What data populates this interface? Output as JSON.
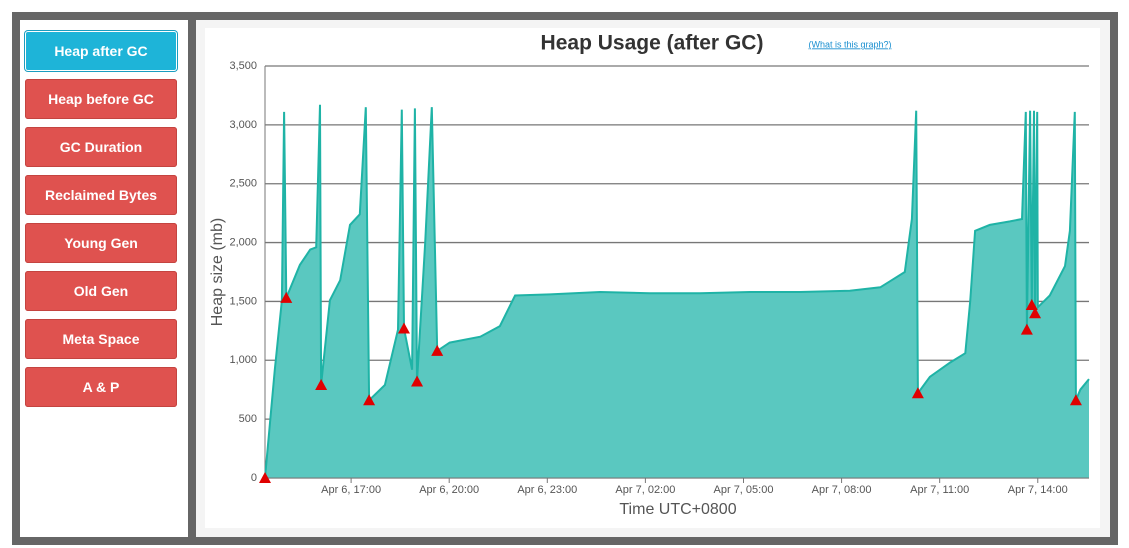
{
  "sidebar": {
    "buttons": [
      "Heap after GC",
      "Heap before GC",
      "GC Duration",
      "Reclaimed Bytes",
      "Young Gen",
      "Old Gen",
      "Meta Space",
      "A & P"
    ],
    "active": 0
  },
  "chart_data": {
    "type": "area",
    "title": "Heap Usage (after GC)",
    "help_link": "(What is this graph?)",
    "x_label": "Time UTC+0800",
    "y_label": "Heap size (mb)",
    "color": "#1fb3a6",
    "fill": "#5ac8c0",
    "grid": true,
    "x": [
      "Apr 6, 14:22",
      "Apr 6, 14:40",
      "Apr 6, 14:53",
      "Apr 6, 14:57",
      "Apr 6, 15:01",
      "Apr 6, 15:26",
      "Apr 6, 15:45",
      "Apr 6, 15:56",
      "Apr 6, 16:03",
      "Apr 6, 16:05",
      "Apr 6, 16:21",
      "Apr 6, 16:40",
      "Apr 6, 16:58",
      "Apr 6, 17:16",
      "Apr 6, 17:27",
      "Apr 6, 17:33",
      "Apr 6, 18:02",
      "Apr 6, 18:26",
      "Apr 6, 18:33",
      "Apr 6, 18:37",
      "Apr 6, 18:52",
      "Apr 6, 18:57",
      "Apr 6, 19:01",
      "Apr 6, 19:16",
      "Apr 6, 19:28",
      "Apr 6, 19:38",
      "Apr 6, 20:01",
      "Apr 6, 20:57",
      "Apr 6, 21:33",
      "Apr 6, 22:01",
      "Apr 6, 23:05",
      "Apr 7, 00:37",
      "Apr 7, 02:08",
      "Apr 7, 03:40",
      "Apr 7, 05:12",
      "Apr 7, 06:44",
      "Apr 7, 08:15",
      "Apr 7, 09:11",
      "Apr 7, 09:56",
      "Apr 7, 10:09",
      "Apr 7, 10:17",
      "Apr 7, 10:20",
      "Apr 7, 10:42",
      "Apr 7, 11:19",
      "Apr 7, 11:47",
      "Apr 7, 11:56",
      "Apr 7, 12:05",
      "Apr 7, 12:32",
      "Apr 7, 13:09",
      "Apr 7, 13:31",
      "Apr 7, 13:38",
      "Apr 7, 13:40",
      "Apr 7, 13:46",
      "Apr 7, 13:49",
      "Apr 7, 13:53",
      "Apr 7, 13:55",
      "Apr 7, 13:59",
      "Apr 7, 14:00",
      "Apr 7, 14:22",
      "Apr 7, 14:50",
      "Apr 7, 14:59",
      "Apr 7, 15:08",
      "Apr 7, 15:10",
      "Apr 7, 15:18",
      "Apr 7, 15:34"
    ],
    "values": [
      0,
      920,
      1510,
      3110,
      1530,
      1810,
      1940,
      1960,
      3170,
      790,
      1510,
      1680,
      2150,
      2240,
      3150,
      660,
      790,
      1260,
      3130,
      1270,
      920,
      3140,
      820,
      2000,
      3150,
      1080,
      1150,
      1200,
      1290,
      1550,
      1560,
      1580,
      1570,
      1570,
      1580,
      1580,
      1590,
      1620,
      1750,
      2200,
      3120,
      720,
      860,
      980,
      1060,
      1500,
      2100,
      2150,
      2180,
      2200,
      3110,
      1260,
      3120,
      1470,
      3120,
      1400,
      3110,
      1450,
      1550,
      1800,
      2100,
      3110,
      660,
      750,
      840
    ],
    "gc_events": {
      "color": "#e00000",
      "x": [
        "Apr 6, 14:22",
        "Apr 6, 15:01",
        "Apr 6, 16:05",
        "Apr 6, 17:33",
        "Apr 6, 18:37",
        "Apr 6, 19:01",
        "Apr 6, 19:38",
        "Apr 7, 10:20",
        "Apr 7, 13:40",
        "Apr 7, 13:49",
        "Apr 7, 13:55",
        "Apr 7, 15:10"
      ],
      "values": [
        0,
        1530,
        790,
        660,
        1270,
        820,
        1080,
        720,
        1260,
        1470,
        1400,
        660
      ]
    },
    "xlim": [
      "Apr 6, 14:22",
      "Apr 7, 15:34"
    ],
    "xticks": [
      "Apr 6, 17:00",
      "Apr 6, 20:00",
      "Apr 6, 23:00",
      "Apr 7, 02:00",
      "Apr 7, 05:00",
      "Apr 7, 08:00",
      "Apr 7, 11:00",
      "Apr 7, 14:00"
    ],
    "ylim": [
      0,
      3500
    ],
    "yticks": [
      0,
      500,
      {
        "value": 1000,
        "label": "1,000"
      },
      {
        "value": 1500,
        "label": "1,500"
      },
      {
        "value": 2000,
        "label": "2,000"
      },
      {
        "value": 2500,
        "label": "2,500"
      },
      {
        "value": 3000,
        "label": "3,000"
      },
      {
        "value": 3500,
        "label": "3,500"
      }
    ]
  }
}
